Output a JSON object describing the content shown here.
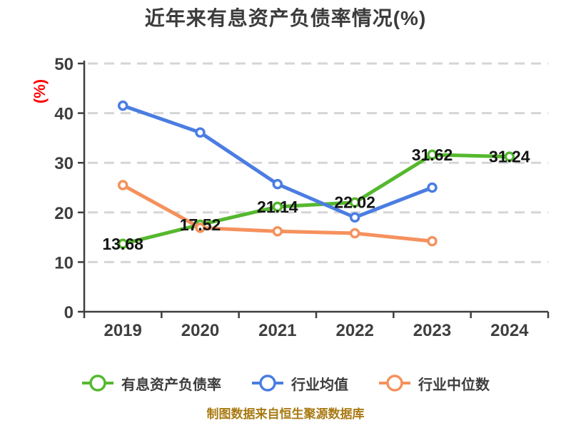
{
  "chart_data": {
    "type": "line",
    "title": "近年来有息资产负债率情况(%)",
    "categories": [
      "2019",
      "2020",
      "2021",
      "2022",
      "2023",
      "2024"
    ],
    "series": [
      {
        "name": "有息资产负债率",
        "color": "#55b82e",
        "values": [
          13.68,
          17.52,
          21.14,
          22.02,
          31.62,
          31.24
        ],
        "labeled": true
      },
      {
        "name": "行业均值",
        "color": "#4b7de2",
        "values": [
          41.5,
          36.1,
          25.7,
          19.0,
          25.0,
          null
        ],
        "labeled": false
      },
      {
        "name": "行业中位数",
        "color": "#f5915d",
        "values": [
          25.5,
          16.9,
          16.2,
          15.8,
          14.2,
          null
        ],
        "labeled": false
      }
    ],
    "xlabel": "",
    "ylabel": "(%)",
    "ylim": [
      0,
      50
    ],
    "ytick_step": 10,
    "yticks": [
      "0",
      "10",
      "20",
      "30",
      "40",
      "50"
    ],
    "grid": "dashed horizontal",
    "legend_position": "bottom",
    "marker_style": "white circle with colored ring"
  },
  "colors": {
    "ylabel_red": "#ff0000",
    "footer_gold": "#a87a12",
    "axis_gray": "#3f3f3f",
    "grid_gray": "#d5d5d5",
    "title_gray": "#3b3b3b"
  },
  "footer": {
    "text": "制图数据来自恒生聚源数据库"
  }
}
